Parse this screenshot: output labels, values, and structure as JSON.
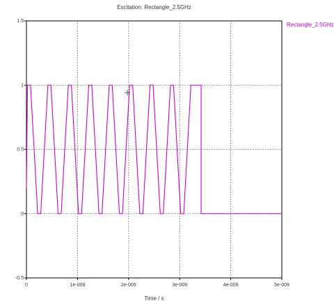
{
  "chart_data": {
    "type": "line",
    "title": "Excitation: Rectangle_2.5GHz",
    "xlabel": "Time / s",
    "ylabel": "",
    "xlim": [
      0,
      5e-09
    ],
    "ylim": [
      -0.5,
      1.5
    ],
    "xticks": [
      0,
      1e-09,
      2e-09,
      3e-09,
      4e-09,
      5e-09
    ],
    "xtick_labels": [
      "0",
      "1e-009",
      "2e-009",
      "3e-009",
      "4e-009",
      "5e-009"
    ],
    "yticks": [
      -0.5,
      0,
      0.5,
      1,
      1.5
    ],
    "ytick_labels": [
      "-0.5",
      "0",
      "0.5",
      "1",
      "1.5"
    ],
    "grid": true,
    "legend": "top-right",
    "series": [
      {
        "name": "Rectangle_2.5GHz",
        "color": "#cc00cc",
        "x": [
          0,
          2e-11,
          8e-11,
          2.2e-10,
          2.8e-10,
          4.2e-10,
          4.8e-10,
          6.2e-10,
          6.8e-10,
          8.2e-10,
          8.8e-10,
          1.02e-09,
          1.08e-09,
          1.22e-09,
          1.28e-09,
          1.42e-09,
          1.48e-09,
          1.62e-09,
          1.68e-09,
          1.82e-09,
          1.88e-09,
          2.02e-09,
          2.08e-09,
          2.22e-09,
          2.28e-09,
          2.42e-09,
          2.48e-09,
          2.62e-09,
          2.68e-09,
          2.82e-09,
          2.88e-09,
          3.02e-09,
          3.08e-09,
          3.22e-09,
          3.28e-09,
          3.42e-09,
          3.42e-09,
          5e-09
        ],
        "y": [
          0.2,
          1,
          1,
          0,
          0,
          1,
          1,
          0,
          0,
          1,
          1,
          0,
          0,
          1,
          1,
          0,
          0,
          1,
          1,
          0,
          0,
          1,
          1,
          0,
          0,
          1,
          1,
          0,
          0,
          1,
          1,
          0,
          0,
          1,
          1,
          1,
          0,
          0
        ]
      }
    ]
  }
}
